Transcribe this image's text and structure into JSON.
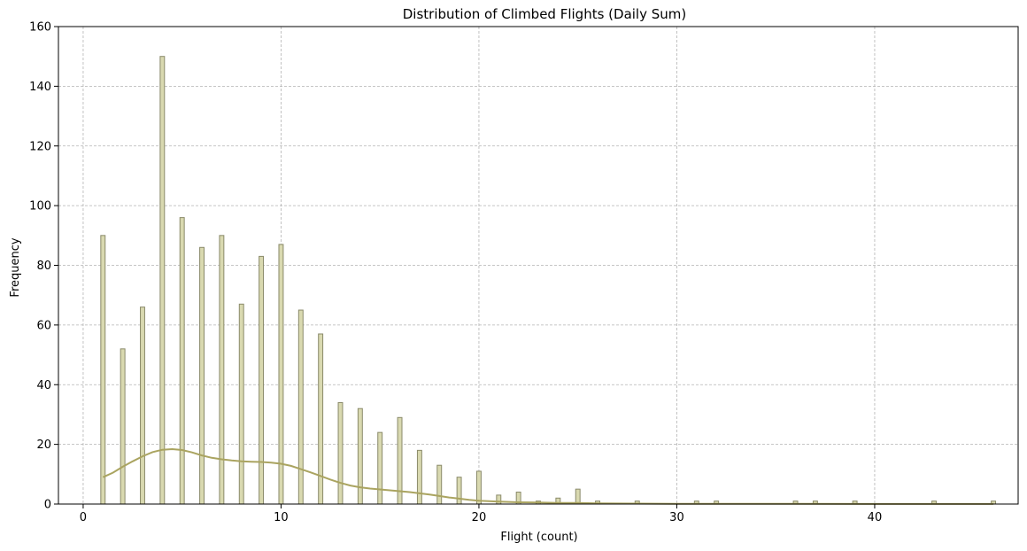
{
  "chart_data": {
    "type": "bar",
    "title": "Distribution of Climbed Flights (Daily Sum)",
    "xlabel": "Flight (count)",
    "ylabel": "Frequency",
    "xlim": [
      -1.25,
      47.25
    ],
    "ylim": [
      0,
      160
    ],
    "xticks": [
      0,
      10,
      20,
      30,
      40
    ],
    "yticks": [
      0,
      20,
      40,
      60,
      80,
      100,
      120,
      140,
      160
    ],
    "grid": true,
    "bar_width": 0.22,
    "bar_color": "#d9d9b0",
    "bar_edge_color": "#8a8a6a",
    "kde_color": "#aaa460",
    "bars": [
      {
        "x": 1,
        "y": 90
      },
      {
        "x": 2,
        "y": 52
      },
      {
        "x": 3,
        "y": 66
      },
      {
        "x": 4,
        "y": 150
      },
      {
        "x": 5,
        "y": 96
      },
      {
        "x": 6,
        "y": 86
      },
      {
        "x": 7,
        "y": 90
      },
      {
        "x": 8,
        "y": 67
      },
      {
        "x": 9,
        "y": 83
      },
      {
        "x": 10,
        "y": 87
      },
      {
        "x": 11,
        "y": 65
      },
      {
        "x": 12,
        "y": 57
      },
      {
        "x": 13,
        "y": 34
      },
      {
        "x": 14,
        "y": 32
      },
      {
        "x": 15,
        "y": 24
      },
      {
        "x": 16,
        "y": 29
      },
      {
        "x": 17,
        "y": 18
      },
      {
        "x": 18,
        "y": 13
      },
      {
        "x": 19,
        "y": 9
      },
      {
        "x": 20,
        "y": 11
      },
      {
        "x": 21,
        "y": 3
      },
      {
        "x": 22,
        "y": 4
      },
      {
        "x": 23,
        "y": 1
      },
      {
        "x": 24,
        "y": 2
      },
      {
        "x": 25,
        "y": 5
      },
      {
        "x": 26,
        "y": 1
      },
      {
        "x": 28,
        "y": 1
      },
      {
        "x": 31,
        "y": 1
      },
      {
        "x": 32,
        "y": 1
      },
      {
        "x": 36,
        "y": 1
      },
      {
        "x": 37,
        "y": 1
      },
      {
        "x": 39,
        "y": 1
      },
      {
        "x": 43,
        "y": 1
      },
      {
        "x": 46,
        "y": 1
      }
    ],
    "kde": [
      [
        1,
        9
      ],
      [
        1.5,
        10.5
      ],
      [
        2,
        12.5
      ],
      [
        2.5,
        14.3
      ],
      [
        3,
        16
      ],
      [
        3.5,
        17.4
      ],
      [
        4,
        18.2
      ],
      [
        4.5,
        18.4
      ],
      [
        5,
        18.1
      ],
      [
        5.5,
        17.3
      ],
      [
        6,
        16.3
      ],
      [
        6.5,
        15.5
      ],
      [
        7,
        15
      ],
      [
        7.5,
        14.6
      ],
      [
        8,
        14.3
      ],
      [
        8.5,
        14.2
      ],
      [
        9,
        14.1
      ],
      [
        9.5,
        13.9
      ],
      [
        10,
        13.5
      ],
      [
        10.5,
        12.8
      ],
      [
        11,
        11.7
      ],
      [
        11.5,
        10.6
      ],
      [
        12,
        9.4
      ],
      [
        12.5,
        8.2
      ],
      [
        13,
        7.1
      ],
      [
        13.5,
        6.2
      ],
      [
        14,
        5.6
      ],
      [
        14.5,
        5.2
      ],
      [
        15,
        4.9
      ],
      [
        15.5,
        4.6
      ],
      [
        16,
        4.3
      ],
      [
        16.5,
        4
      ],
      [
        17,
        3.6
      ],
      [
        17.5,
        3.2
      ],
      [
        18,
        2.7
      ],
      [
        18.5,
        2.2
      ],
      [
        19,
        1.8
      ],
      [
        19.5,
        1.4
      ],
      [
        20,
        1.1
      ],
      [
        21,
        0.8
      ],
      [
        22,
        0.6
      ],
      [
        23,
        0.5
      ],
      [
        24,
        0.4
      ],
      [
        25,
        0.35
      ],
      [
        26,
        0.25
      ],
      [
        28,
        0.15
      ],
      [
        30,
        0.1
      ],
      [
        33,
        0.08
      ],
      [
        36,
        0.06
      ],
      [
        40,
        0.04
      ],
      [
        43,
        0.03
      ],
      [
        46,
        0.02
      ]
    ]
  }
}
